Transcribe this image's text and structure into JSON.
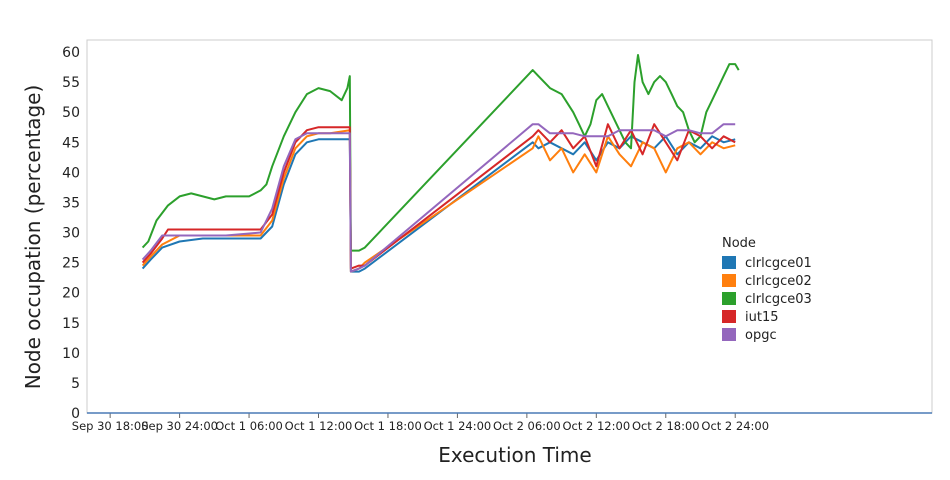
{
  "chart_data": {
    "type": "line",
    "title": "",
    "xlabel": "Execution Time",
    "ylabel": "Node occupation (percentage)",
    "ylim": [
      0,
      62
    ],
    "xlim_hours": [
      16,
      89
    ],
    "yticks": [
      0,
      5,
      10,
      15,
      20,
      25,
      30,
      35,
      40,
      45,
      50,
      55,
      60
    ],
    "xticks": [
      {
        "h": 18,
        "label": "Sep 30 18:00"
      },
      {
        "h": 24,
        "label": "Sep 30 24:00"
      },
      {
        "h": 30,
        "label": "Oct 1 06:00"
      },
      {
        "h": 36,
        "label": "Oct 1 12:00"
      },
      {
        "h": 42,
        "label": "Oct 1 18:00"
      },
      {
        "h": 48,
        "label": "Oct 1 24:00"
      },
      {
        "h": 54,
        "label": "Oct 2 06:00"
      },
      {
        "h": 60,
        "label": "Oct 2 12:00"
      },
      {
        "h": 66,
        "label": "Oct 2 18:00"
      },
      {
        "h": 72,
        "label": "Oct 2 24:00"
      }
    ],
    "grid": false,
    "legend": {
      "title": "Node",
      "position": "center-right"
    },
    "series": [
      {
        "name": "clrlcgce01",
        "color": "#1f77b4",
        "points": [
          [
            20.8,
            24
          ],
          [
            21.5,
            25.5
          ],
          [
            22.5,
            27.5
          ],
          [
            24,
            28.5
          ],
          [
            26,
            29
          ],
          [
            28,
            29
          ],
          [
            31,
            29
          ],
          [
            32,
            31
          ],
          [
            33,
            38
          ],
          [
            34,
            43
          ],
          [
            35,
            45
          ],
          [
            36,
            45.5
          ],
          [
            37,
            45.5
          ],
          [
            38.7,
            45.5
          ],
          [
            38.8,
            23.5
          ],
          [
            39.5,
            23.5
          ],
          [
            40,
            24
          ],
          [
            54.5,
            45
          ],
          [
            55,
            44
          ],
          [
            56,
            45
          ],
          [
            57,
            44
          ],
          [
            58,
            43
          ],
          [
            59,
            45
          ],
          [
            60,
            42
          ],
          [
            61,
            45
          ],
          [
            62,
            44
          ],
          [
            63,
            46
          ],
          [
            64,
            45
          ],
          [
            65,
            44
          ],
          [
            66,
            46
          ],
          [
            67,
            43
          ],
          [
            68,
            45
          ],
          [
            69,
            44
          ],
          [
            70,
            46
          ],
          [
            71,
            45
          ],
          [
            72,
            45.5
          ]
        ]
      },
      {
        "name": "clrlcgce02",
        "color": "#ff7f0e",
        "points": [
          [
            20.8,
            24.5
          ],
          [
            21.5,
            26
          ],
          [
            22.5,
            28
          ],
          [
            24,
            29.5
          ],
          [
            26,
            29.5
          ],
          [
            28,
            29.5
          ],
          [
            31,
            29.5
          ],
          [
            32,
            32
          ],
          [
            33,
            39
          ],
          [
            34,
            44
          ],
          [
            35,
            46
          ],
          [
            36,
            46.5
          ],
          [
            37,
            46.5
          ],
          [
            38.7,
            47
          ],
          [
            38.8,
            23.5
          ],
          [
            39.5,
            24
          ],
          [
            40,
            25
          ],
          [
            54.5,
            44
          ],
          [
            55,
            46
          ],
          [
            56,
            42
          ],
          [
            57,
            44
          ],
          [
            58,
            40
          ],
          [
            59,
            43
          ],
          [
            60,
            40
          ],
          [
            61,
            46
          ],
          [
            62,
            43
          ],
          [
            63,
            41
          ],
          [
            64,
            45
          ],
          [
            65,
            44
          ],
          [
            66,
            40
          ],
          [
            67,
            44
          ],
          [
            68,
            45
          ],
          [
            69,
            43
          ],
          [
            70,
            45
          ],
          [
            71,
            44
          ],
          [
            72,
            44.5
          ]
        ]
      },
      {
        "name": "clrlcgce03",
        "color": "#2ca02c",
        "points": [
          [
            20.8,
            27.5
          ],
          [
            21.3,
            28.5
          ],
          [
            22,
            32
          ],
          [
            23,
            34.5
          ],
          [
            24,
            36
          ],
          [
            25,
            36.5
          ],
          [
            26,
            36
          ],
          [
            27,
            35.5
          ],
          [
            28,
            36
          ],
          [
            29,
            36
          ],
          [
            30,
            36
          ],
          [
            31,
            37
          ],
          [
            31.5,
            38
          ],
          [
            32,
            41
          ],
          [
            33,
            46
          ],
          [
            34,
            50
          ],
          [
            35,
            53
          ],
          [
            36,
            54
          ],
          [
            37,
            53.5
          ],
          [
            38,
            52
          ],
          [
            38.5,
            54
          ],
          [
            38.7,
            56
          ],
          [
            38.8,
            27
          ],
          [
            39.5,
            27
          ],
          [
            40,
            27.5
          ],
          [
            54.5,
            57
          ],
          [
            55,
            56
          ],
          [
            56,
            54
          ],
          [
            57,
            53
          ],
          [
            58,
            50
          ],
          [
            58.5,
            48
          ],
          [
            59,
            46
          ],
          [
            59.5,
            48
          ],
          [
            60,
            52
          ],
          [
            60.5,
            53
          ],
          [
            61,
            51
          ],
          [
            61.5,
            49
          ],
          [
            62,
            47
          ],
          [
            62.5,
            45
          ],
          [
            63,
            44
          ],
          [
            63.3,
            55
          ],
          [
            63.6,
            59.5
          ],
          [
            64,
            55
          ],
          [
            64.5,
            53
          ],
          [
            65,
            55
          ],
          [
            65.5,
            56
          ],
          [
            66,
            55
          ],
          [
            66.5,
            53
          ],
          [
            67,
            51
          ],
          [
            67.5,
            50
          ],
          [
            68,
            47
          ],
          [
            68.5,
            45
          ],
          [
            69,
            46
          ],
          [
            69.5,
            50
          ],
          [
            70,
            52
          ],
          [
            70.5,
            54
          ],
          [
            71,
            56
          ],
          [
            71.5,
            58
          ],
          [
            72,
            58
          ],
          [
            72.3,
            57
          ]
        ]
      },
      {
        "name": "iut15",
        "color": "#d62728",
        "points": [
          [
            20.8,
            25
          ],
          [
            21.5,
            26.5
          ],
          [
            22.5,
            29
          ],
          [
            23,
            30.5
          ],
          [
            24,
            30.5
          ],
          [
            26,
            30.5
          ],
          [
            28,
            30.5
          ],
          [
            31,
            30.5
          ],
          [
            32,
            33
          ],
          [
            33,
            40
          ],
          [
            34,
            45
          ],
          [
            35,
            47
          ],
          [
            36,
            47.5
          ],
          [
            37,
            47.5
          ],
          [
            38.7,
            47.5
          ],
          [
            38.8,
            24
          ],
          [
            39.5,
            24.5
          ],
          [
            40,
            24.5
          ],
          [
            54.5,
            46
          ],
          [
            55,
            47
          ],
          [
            56,
            45
          ],
          [
            57,
            47
          ],
          [
            58,
            44
          ],
          [
            59,
            46
          ],
          [
            60,
            41
          ],
          [
            61,
            48
          ],
          [
            62,
            44
          ],
          [
            63,
            47
          ],
          [
            64,
            43
          ],
          [
            65,
            48
          ],
          [
            66,
            45
          ],
          [
            67,
            42
          ],
          [
            68,
            47
          ],
          [
            69,
            46
          ],
          [
            70,
            44
          ],
          [
            71,
            46
          ],
          [
            72,
            45
          ]
        ]
      },
      {
        "name": "opgc",
        "color": "#9467bd",
        "points": [
          [
            20.8,
            25.5
          ],
          [
            21.5,
            27
          ],
          [
            22.5,
            29.5
          ],
          [
            24,
            29.5
          ],
          [
            26,
            29.5
          ],
          [
            28,
            29.5
          ],
          [
            31,
            30
          ],
          [
            32,
            34
          ],
          [
            33,
            41
          ],
          [
            34,
            45.5
          ],
          [
            35,
            46.5
          ],
          [
            36,
            46.5
          ],
          [
            37,
            46.5
          ],
          [
            38.7,
            46.5
          ],
          [
            38.8,
            23.5
          ],
          [
            39.5,
            24
          ],
          [
            40,
            24.5
          ],
          [
            54.5,
            48
          ],
          [
            55,
            48
          ],
          [
            56,
            46.5
          ],
          [
            57,
            46.5
          ],
          [
            58,
            46.5
          ],
          [
            59,
            46
          ],
          [
            60,
            46
          ],
          [
            61,
            46
          ],
          [
            62,
            47
          ],
          [
            63,
            47
          ],
          [
            64,
            47
          ],
          [
            65,
            47
          ],
          [
            66,
            46
          ],
          [
            67,
            47
          ],
          [
            68,
            47
          ],
          [
            69,
            46.5
          ],
          [
            70,
            46.5
          ],
          [
            71,
            48
          ],
          [
            72,
            48
          ]
        ]
      }
    ]
  }
}
